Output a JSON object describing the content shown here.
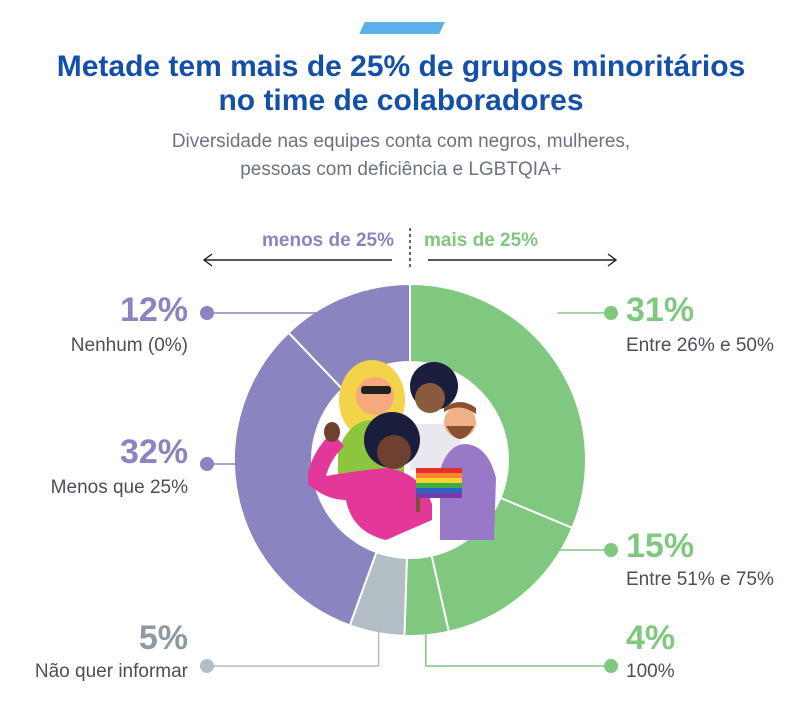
{
  "header": {
    "title_line1": "Metade tem mais de 25% de grupos minoritários",
    "title_line2": "no time de colaboradores",
    "subtitle_line1": "Diversidade nas equipes conta com negros, mulheres,",
    "subtitle_line2": "pessoas com deficiência e LGBTQIA+"
  },
  "direction": {
    "left": "menos de 25%",
    "right": "mais de 25%"
  },
  "colors": {
    "green": "#80c880",
    "purple": "#8a84c0",
    "gray": "#b2bdc4",
    "title": "#1550a8"
  },
  "chart_data": {
    "type": "pie",
    "variant": "donut",
    "unit": "%",
    "slices": [
      {
        "label": "Entre 26% e 50%",
        "value": 31,
        "display": "31%",
        "group": "mais de 25%",
        "color": "#80c880"
      },
      {
        "label": "Entre 51% e 75%",
        "value": 15,
        "display": "15%",
        "group": "mais de 25%",
        "color": "#80c880"
      },
      {
        "label": "100%",
        "value": 4,
        "display": "4%",
        "group": "mais de 25%",
        "color": "#80c880"
      },
      {
        "label": "Não quer informar",
        "value": 5,
        "display": "5%",
        "group": "",
        "color": "#b2bdc4"
      },
      {
        "label": "Menos que 25%",
        "value": 32,
        "display": "32%",
        "group": "menos de 25%",
        "color": "#8a84c0"
      },
      {
        "label": "Nenhum (0%)",
        "value": 12,
        "display": "12%",
        "group": "menos de 25%",
        "color": "#8a84c0"
      }
    ]
  },
  "illustration": {
    "flag_icon": "rainbow-flag-icon"
  }
}
